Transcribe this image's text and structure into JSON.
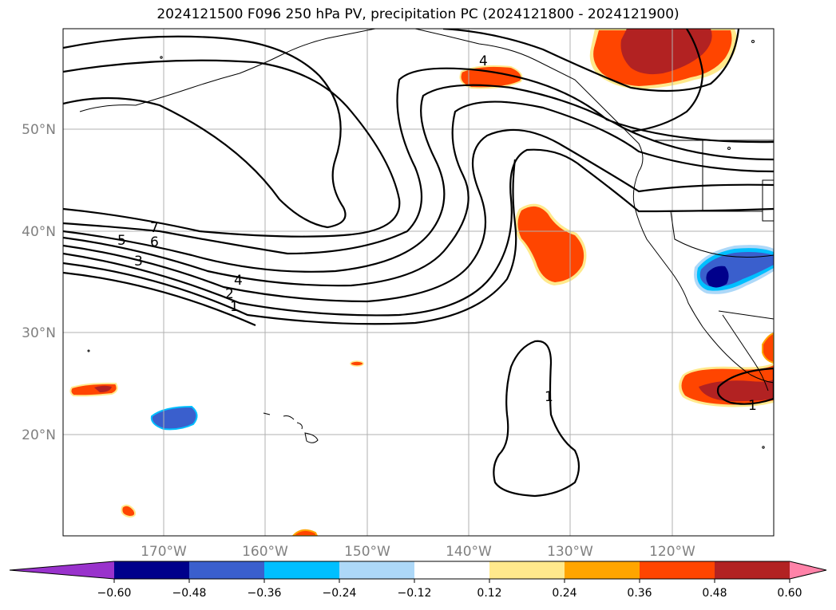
{
  "title": "2024121500 F096 250 hPa PV, precipitation PC (2024121800 - 2024121900)",
  "map": {
    "lat_labels": [
      "50°N",
      "40°N",
      "30°N",
      "20°N"
    ],
    "lon_labels": [
      "170°W",
      "160°W",
      "150°W",
      "140°W",
      "130°W",
      "120°W"
    ],
    "contour_labels": [
      "7",
      "6",
      "5",
      "3",
      "4",
      "2",
      "1",
      "4",
      "1",
      "1"
    ]
  },
  "colorbar": {
    "ticks": [
      "−0.60",
      "−0.48",
      "−0.36",
      "−0.24",
      "−0.12",
      "0.12",
      "0.24",
      "0.36",
      "0.48",
      "0.60"
    ],
    "colors": [
      "#9932cc",
      "#00008b",
      "#3a5fcd",
      "#00bfff",
      "#add8f8",
      "#ffffff",
      "#ffe98c",
      "#ffa500",
      "#ff4500",
      "#b22222",
      "#ff82a8"
    ]
  }
}
